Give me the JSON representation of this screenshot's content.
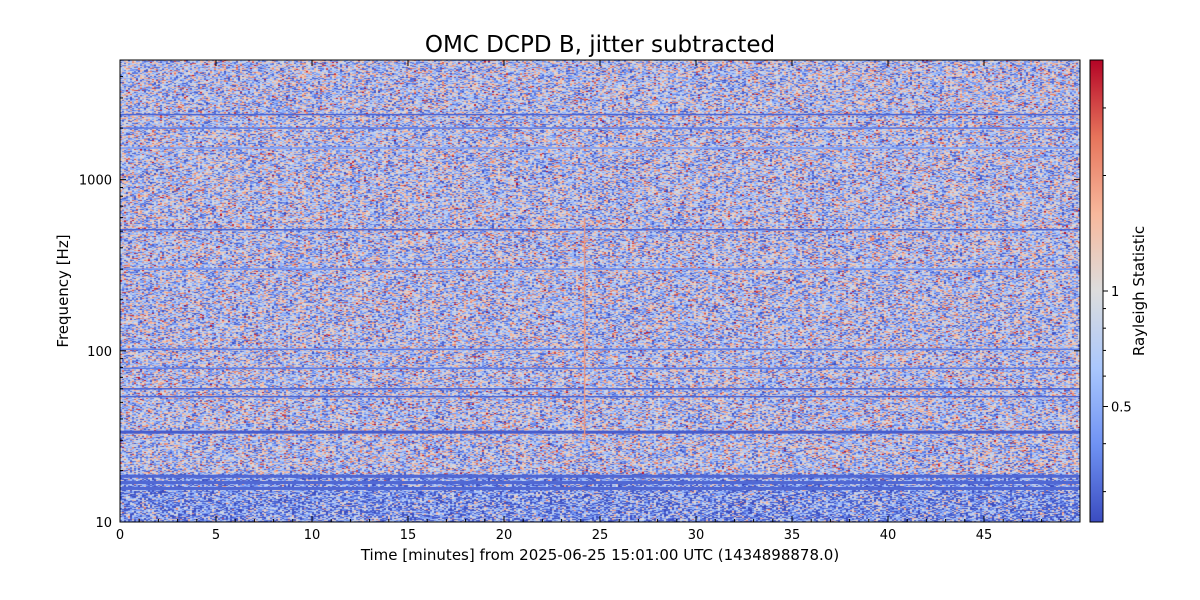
{
  "chart_data": {
    "type": "heatmap",
    "title": "OMC DCPD B, jitter subtracted",
    "xlabel": "Time [minutes] from 2025-06-25 15:01:00 UTC (1434898878.0)",
    "ylabel": "Frequency [Hz]",
    "colorbar_label": "Rayleigh Statistic",
    "x_range_minutes": [
      0,
      50
    ],
    "y_range_hz": [
      10,
      5000
    ],
    "y_scale": "log",
    "x_ticks": [
      0,
      5,
      10,
      15,
      20,
      25,
      30,
      35,
      40,
      45
    ],
    "x_tick_labels": [
      "0",
      "5",
      "10",
      "15",
      "20",
      "25",
      "30",
      "35",
      "40",
      "45"
    ],
    "y_ticks": [
      10,
      100,
      1000
    ],
    "y_tick_labels": [
      "10",
      "100",
      "1000"
    ],
    "colorbar_scale": "log",
    "colorbar_range": [
      0.25,
      4
    ],
    "colorbar_ticks": [
      0.5,
      1
    ],
    "colorbar_tick_labels": [
      "0.5",
      "1"
    ],
    "colormap": [
      "#3b4cc0",
      "#6f92f3",
      "#aac7fd",
      "#dddddd",
      "#f7b89c",
      "#e7745b",
      "#b40426"
    ],
    "grid": false,
    "typical_value": 0.8,
    "low_frequency_region_hz": [
      10,
      19
    ],
    "low_frequency_region_value": 0.45,
    "lines": [
      {
        "frequency_hz": 2400,
        "value": 0.3
      },
      {
        "frequency_hz": 2000,
        "value": 0.35
      },
      {
        "frequency_hz": 1530,
        "value": 0.45
      },
      {
        "frequency_hz": 510,
        "value": 0.3
      },
      {
        "frequency_hz": 300,
        "value": 0.4
      },
      {
        "frequency_hz": 102,
        "value": 0.35
      },
      {
        "frequency_hz": 79,
        "value": 0.35
      },
      {
        "frequency_hz": 60,
        "value": 0.3
      },
      {
        "frequency_hz": 54,
        "value": 0.3
      },
      {
        "frequency_hz": 33.5,
        "value": 0.28
      },
      {
        "frequency_hz": 18.5,
        "value": 0.3
      },
      {
        "frequency_hz": 17,
        "value": 0.3
      },
      {
        "frequency_hz": 15.7,
        "value": 0.3
      }
    ],
    "transients": [
      {
        "time_minutes": 24.2,
        "frequency_range_hz": [
          30,
          600
        ],
        "value": 2.0
      }
    ]
  }
}
